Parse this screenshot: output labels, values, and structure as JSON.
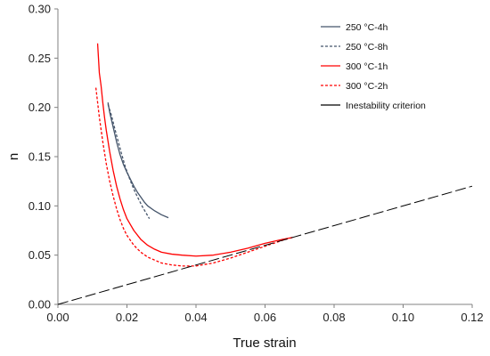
{
  "chart_data": {
    "type": "line",
    "title": "",
    "xlabel": "True strain",
    "ylabel": "n",
    "xlim": [
      0.0,
      0.12
    ],
    "ylim": [
      0.0,
      0.3
    ],
    "x_ticks": [
      "0.00",
      "0.02",
      "0.04",
      "0.06",
      "0.08",
      "0.10",
      "0.12"
    ],
    "y_ticks": [
      "0.00",
      "0.05",
      "0.10",
      "0.15",
      "0.20",
      "0.25",
      "0.30"
    ],
    "grid": false,
    "legend_position": "top-right",
    "series": [
      {
        "name": "250 °C-4h",
        "color": "#44546a",
        "dash": "solid",
        "points": [
          [
            0.0145,
            0.205
          ],
          [
            0.015,
            0.195
          ],
          [
            0.016,
            0.18
          ],
          [
            0.017,
            0.165
          ],
          [
            0.018,
            0.152
          ],
          [
            0.019,
            0.142
          ],
          [
            0.02,
            0.134
          ],
          [
            0.021,
            0.127
          ],
          [
            0.022,
            0.12
          ],
          [
            0.023,
            0.114
          ],
          [
            0.024,
            0.109
          ],
          [
            0.025,
            0.104
          ],
          [
            0.026,
            0.1
          ],
          [
            0.028,
            0.095
          ],
          [
            0.03,
            0.091
          ],
          [
            0.032,
            0.088
          ]
        ]
      },
      {
        "name": "250 °C-8h",
        "color": "#44546a",
        "dash": "dashed",
        "points": [
          [
            0.0145,
            0.203
          ],
          [
            0.0155,
            0.192
          ],
          [
            0.0165,
            0.178
          ],
          [
            0.0175,
            0.165
          ],
          [
            0.0185,
            0.152
          ],
          [
            0.0195,
            0.14
          ],
          [
            0.0205,
            0.13
          ],
          [
            0.0215,
            0.121
          ],
          [
            0.0225,
            0.113
          ],
          [
            0.0235,
            0.106
          ],
          [
            0.0245,
            0.099
          ],
          [
            0.0255,
            0.093
          ],
          [
            0.0265,
            0.087
          ]
        ]
      },
      {
        "name": "300 °C-1h",
        "color": "#ff0000",
        "dash": "solid",
        "points": [
          [
            0.0115,
            0.265
          ],
          [
            0.012,
            0.235
          ],
          [
            0.0125,
            0.222
          ],
          [
            0.013,
            0.205
          ],
          [
            0.0135,
            0.19
          ],
          [
            0.014,
            0.177
          ],
          [
            0.015,
            0.155
          ],
          [
            0.016,
            0.136
          ],
          [
            0.017,
            0.12
          ],
          [
            0.018,
            0.107
          ],
          [
            0.019,
            0.096
          ],
          [
            0.02,
            0.087
          ],
          [
            0.022,
            0.075
          ],
          [
            0.024,
            0.066
          ],
          [
            0.026,
            0.06
          ],
          [
            0.028,
            0.056
          ],
          [
            0.03,
            0.053
          ],
          [
            0.033,
            0.051
          ],
          [
            0.036,
            0.05
          ],
          [
            0.04,
            0.049
          ],
          [
            0.045,
            0.05
          ],
          [
            0.05,
            0.053
          ],
          [
            0.055,
            0.057
          ],
          [
            0.06,
            0.062
          ],
          [
            0.065,
            0.066
          ],
          [
            0.068,
            0.068
          ]
        ]
      },
      {
        "name": "300 °C-2h",
        "color": "#ff0000",
        "dash": "dashed",
        "points": [
          [
            0.011,
            0.22
          ],
          [
            0.0115,
            0.205
          ],
          [
            0.012,
            0.19
          ],
          [
            0.013,
            0.165
          ],
          [
            0.014,
            0.143
          ],
          [
            0.015,
            0.125
          ],
          [
            0.016,
            0.11
          ],
          [
            0.017,
            0.097
          ],
          [
            0.018,
            0.086
          ],
          [
            0.019,
            0.077
          ],
          [
            0.02,
            0.07
          ],
          [
            0.022,
            0.06
          ],
          [
            0.024,
            0.053
          ],
          [
            0.026,
            0.048
          ],
          [
            0.028,
            0.045
          ],
          [
            0.03,
            0.042
          ],
          [
            0.033,
            0.04
          ],
          [
            0.036,
            0.039
          ],
          [
            0.04,
            0.039
          ],
          [
            0.045,
            0.042
          ],
          [
            0.05,
            0.047
          ],
          [
            0.055,
            0.053
          ],
          [
            0.06,
            0.059
          ],
          [
            0.065,
            0.065
          ],
          [
            0.068,
            0.068
          ]
        ]
      },
      {
        "name": "Inestability criterion",
        "color": "#000000",
        "dash": "longdash",
        "points": [
          [
            0.0,
            0.0
          ],
          [
            0.12,
            0.12
          ]
        ]
      }
    ]
  }
}
